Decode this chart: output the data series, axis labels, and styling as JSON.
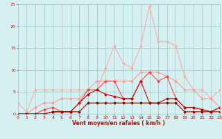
{
  "x": [
    0,
    1,
    2,
    3,
    4,
    5,
    6,
    7,
    8,
    9,
    10,
    11,
    12,
    13,
    14,
    15,
    16,
    17,
    18,
    19,
    20,
    21,
    22,
    23
  ],
  "series": [
    {
      "name": "line1_lightest",
      "color": "#ffaaaa",
      "values": [
        2.5,
        0.5,
        5.5,
        5.5,
        5.5,
        5.5,
        5.5,
        5.5,
        5.5,
        5.5,
        10.5,
        15.5,
        11.5,
        10.5,
        15.5,
        24.5,
        16.5,
        16.5,
        15.5,
        8.5,
        5.5,
        5.5,
        3.5,
        5.5
      ],
      "marker": "D",
      "markersize": 1.5,
      "linewidth": 0.8
    },
    {
      "name": "line2_light",
      "color": "#ff9999",
      "values": [
        0,
        0,
        1.5,
        2.5,
        2.5,
        3.5,
        3.5,
        3.5,
        5.5,
        7.5,
        7.5,
        7.5,
        7.5,
        7.5,
        9.5,
        9.5,
        9.5,
        8.5,
        7.5,
        5.5,
        5.5,
        3.5,
        3.5,
        1.5
      ],
      "marker": "D",
      "markersize": 1.5,
      "linewidth": 0.8
    },
    {
      "name": "line3_medium",
      "color": "#ff4444",
      "values": [
        0,
        0,
        0,
        1.0,
        1.5,
        0.5,
        0.5,
        2.5,
        5.5,
        5.5,
        7.5,
        7.5,
        3.5,
        3.5,
        7.5,
        9.5,
        7.5,
        8.5,
        3.5,
        1.5,
        1.5,
        1.0,
        0.5,
        1.5
      ],
      "marker": "D",
      "markersize": 1.5,
      "linewidth": 0.8
    },
    {
      "name": "line4_dark",
      "color": "#cc0000",
      "values": [
        0,
        0,
        0,
        0,
        0.5,
        0.5,
        0.5,
        2.5,
        4.5,
        5.5,
        4.5,
        4.0,
        3.5,
        3.5,
        7.5,
        2.5,
        2.5,
        3.5,
        3.5,
        1.5,
        1.5,
        1.0,
        0.5,
        1.5
      ],
      "marker": "D",
      "markersize": 1.5,
      "linewidth": 0.8
    },
    {
      "name": "line5_darkest",
      "color": "#990000",
      "values": [
        0,
        0,
        0,
        0,
        0.5,
        0.5,
        0.5,
        0.5,
        2.5,
        2.5,
        2.5,
        2.5,
        2.5,
        2.5,
        2.5,
        2.5,
        2.5,
        2.5,
        2.5,
        0.5,
        0.5,
        0.5,
        0.5,
        0.5
      ],
      "marker": "D",
      "markersize": 1.5,
      "linewidth": 0.8
    }
  ],
  "xlabel": "Vent moyen/en rafales ( km/h )",
  "xlim": [
    0,
    23
  ],
  "ylim": [
    0,
    25
  ],
  "yticks": [
    0,
    5,
    10,
    15,
    20,
    25
  ],
  "xticks": [
    0,
    1,
    2,
    3,
    4,
    5,
    6,
    7,
    8,
    9,
    10,
    11,
    12,
    13,
    14,
    15,
    16,
    17,
    18,
    19,
    20,
    21,
    22,
    23
  ],
  "bg_color": "#d4f0f0",
  "grid_color": "#aacccc",
  "tick_color": "#cc0000",
  "label_color": "#cc0000"
}
